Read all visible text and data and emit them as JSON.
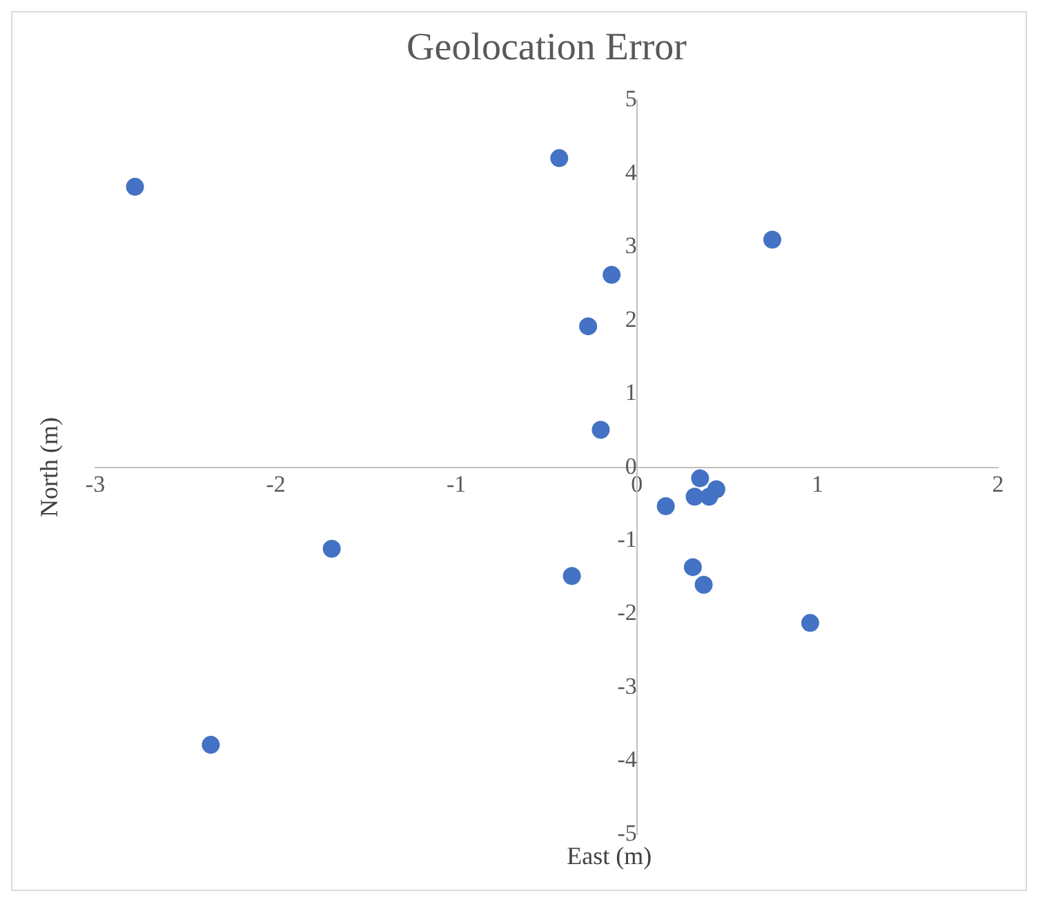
{
  "chart_data": {
    "type": "scatter",
    "title": "Geolocation Error",
    "xlabel": "East (m)",
    "ylabel": "North (m)",
    "xlim": [
      -3,
      2
    ],
    "xticks": [
      -3,
      -2,
      -1,
      0,
      1,
      2
    ],
    "ylim": [
      -5,
      5
    ],
    "yticks": [
      -5,
      -4,
      -3,
      -2,
      -1,
      0,
      1,
      2,
      3,
      4,
      5
    ],
    "grid": false,
    "legend": false,
    "marker": "circle",
    "series": [
      {
        "color": "#4472c4",
        "x": [
          -2.78,
          -0.43,
          0.75,
          -0.14,
          -0.27,
          -0.2,
          0.35,
          0.32,
          0.4,
          0.44,
          0.16,
          -1.69,
          -0.36,
          0.31,
          0.37,
          0.96,
          -2.36
        ],
        "values": [
          3.82,
          4.21,
          3.1,
          2.62,
          1.92,
          0.51,
          -0.15,
          -0.4,
          -0.4,
          -0.3,
          -0.53,
          -1.11,
          -1.48,
          -1.36,
          -1.6,
          -2.12,
          -3.78
        ]
      }
    ]
  }
}
